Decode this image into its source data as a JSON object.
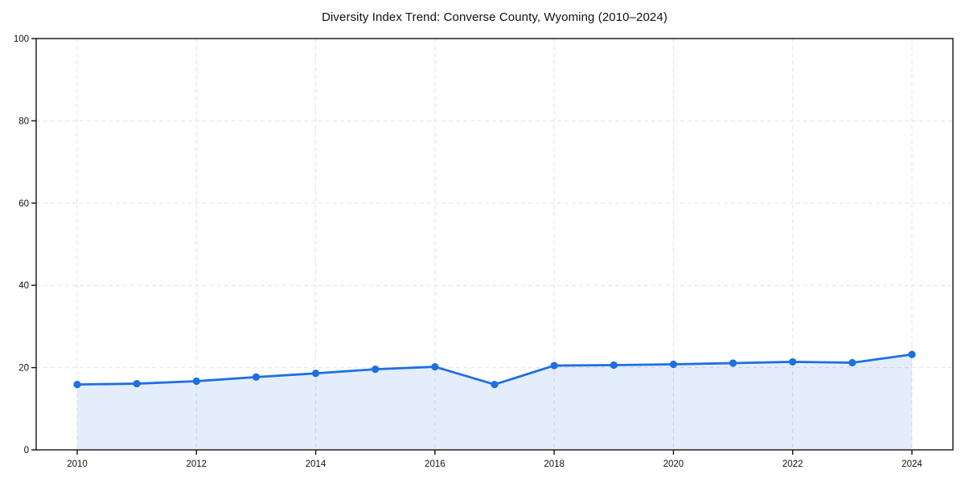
{
  "page": {
    "background": "#ffffff"
  },
  "chart_data": {
    "type": "area",
    "title": "Diversity Index Trend: Converse County, Wyoming (2010–2024)",
    "xlabel": "",
    "ylabel": "",
    "x": [
      2010,
      2011,
      2012,
      2013,
      2014,
      2015,
      2016,
      2017,
      2018,
      2019,
      2020,
      2021,
      2022,
      2023,
      2024
    ],
    "series": [
      {
        "name": "Diversity Index",
        "values": [
          15.9,
          16.1,
          16.7,
          17.7,
          18.6,
          19.6,
          20.2,
          15.9,
          20.5,
          20.6,
          20.8,
          21.1,
          21.4,
          21.2,
          23.2
        ]
      }
    ],
    "ylim": [
      0,
      100
    ],
    "yticks": [
      0,
      20,
      40,
      60,
      80,
      100
    ],
    "xticks": [
      2010,
      2012,
      2014,
      2016,
      2018,
      2020,
      2022,
      2024
    ],
    "grid": "dashed",
    "legend": "none",
    "colors": {
      "line": "#1e6fe0",
      "marker": "#1e6fe0",
      "fill": "rgba(30, 111, 224, 0.12)",
      "grid": "#e2e2e2",
      "axis": "#111111",
      "text": "#111111"
    }
  }
}
